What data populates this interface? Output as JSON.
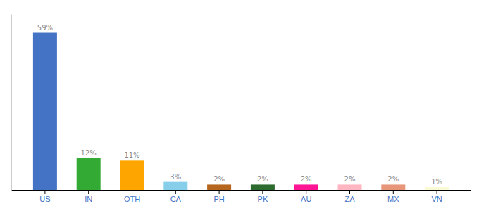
{
  "chart_data": {
    "type": "bar",
    "categories": [
      "US",
      "IN",
      "OTH",
      "CA",
      "PH",
      "PK",
      "AU",
      "ZA",
      "MX",
      "VN"
    ],
    "values": [
      59,
      12,
      11,
      3,
      2,
      2,
      2,
      2,
      2,
      1
    ],
    "value_labels": [
      "59%",
      "12%",
      "11%",
      "3%",
      "2%",
      "2%",
      "2%",
      "2%",
      "2%",
      "1%"
    ],
    "colors": [
      "#4472C4",
      "#33AA33",
      "#FFA500",
      "#87CEEB",
      "#B5651D",
      "#2E6B2E",
      "#FF1493",
      "#FFB6C1",
      "#E8967A",
      "#FAFAD2"
    ],
    "ylim": [
      0,
      66
    ],
    "data_labels": true,
    "tick_labels": "x"
  }
}
